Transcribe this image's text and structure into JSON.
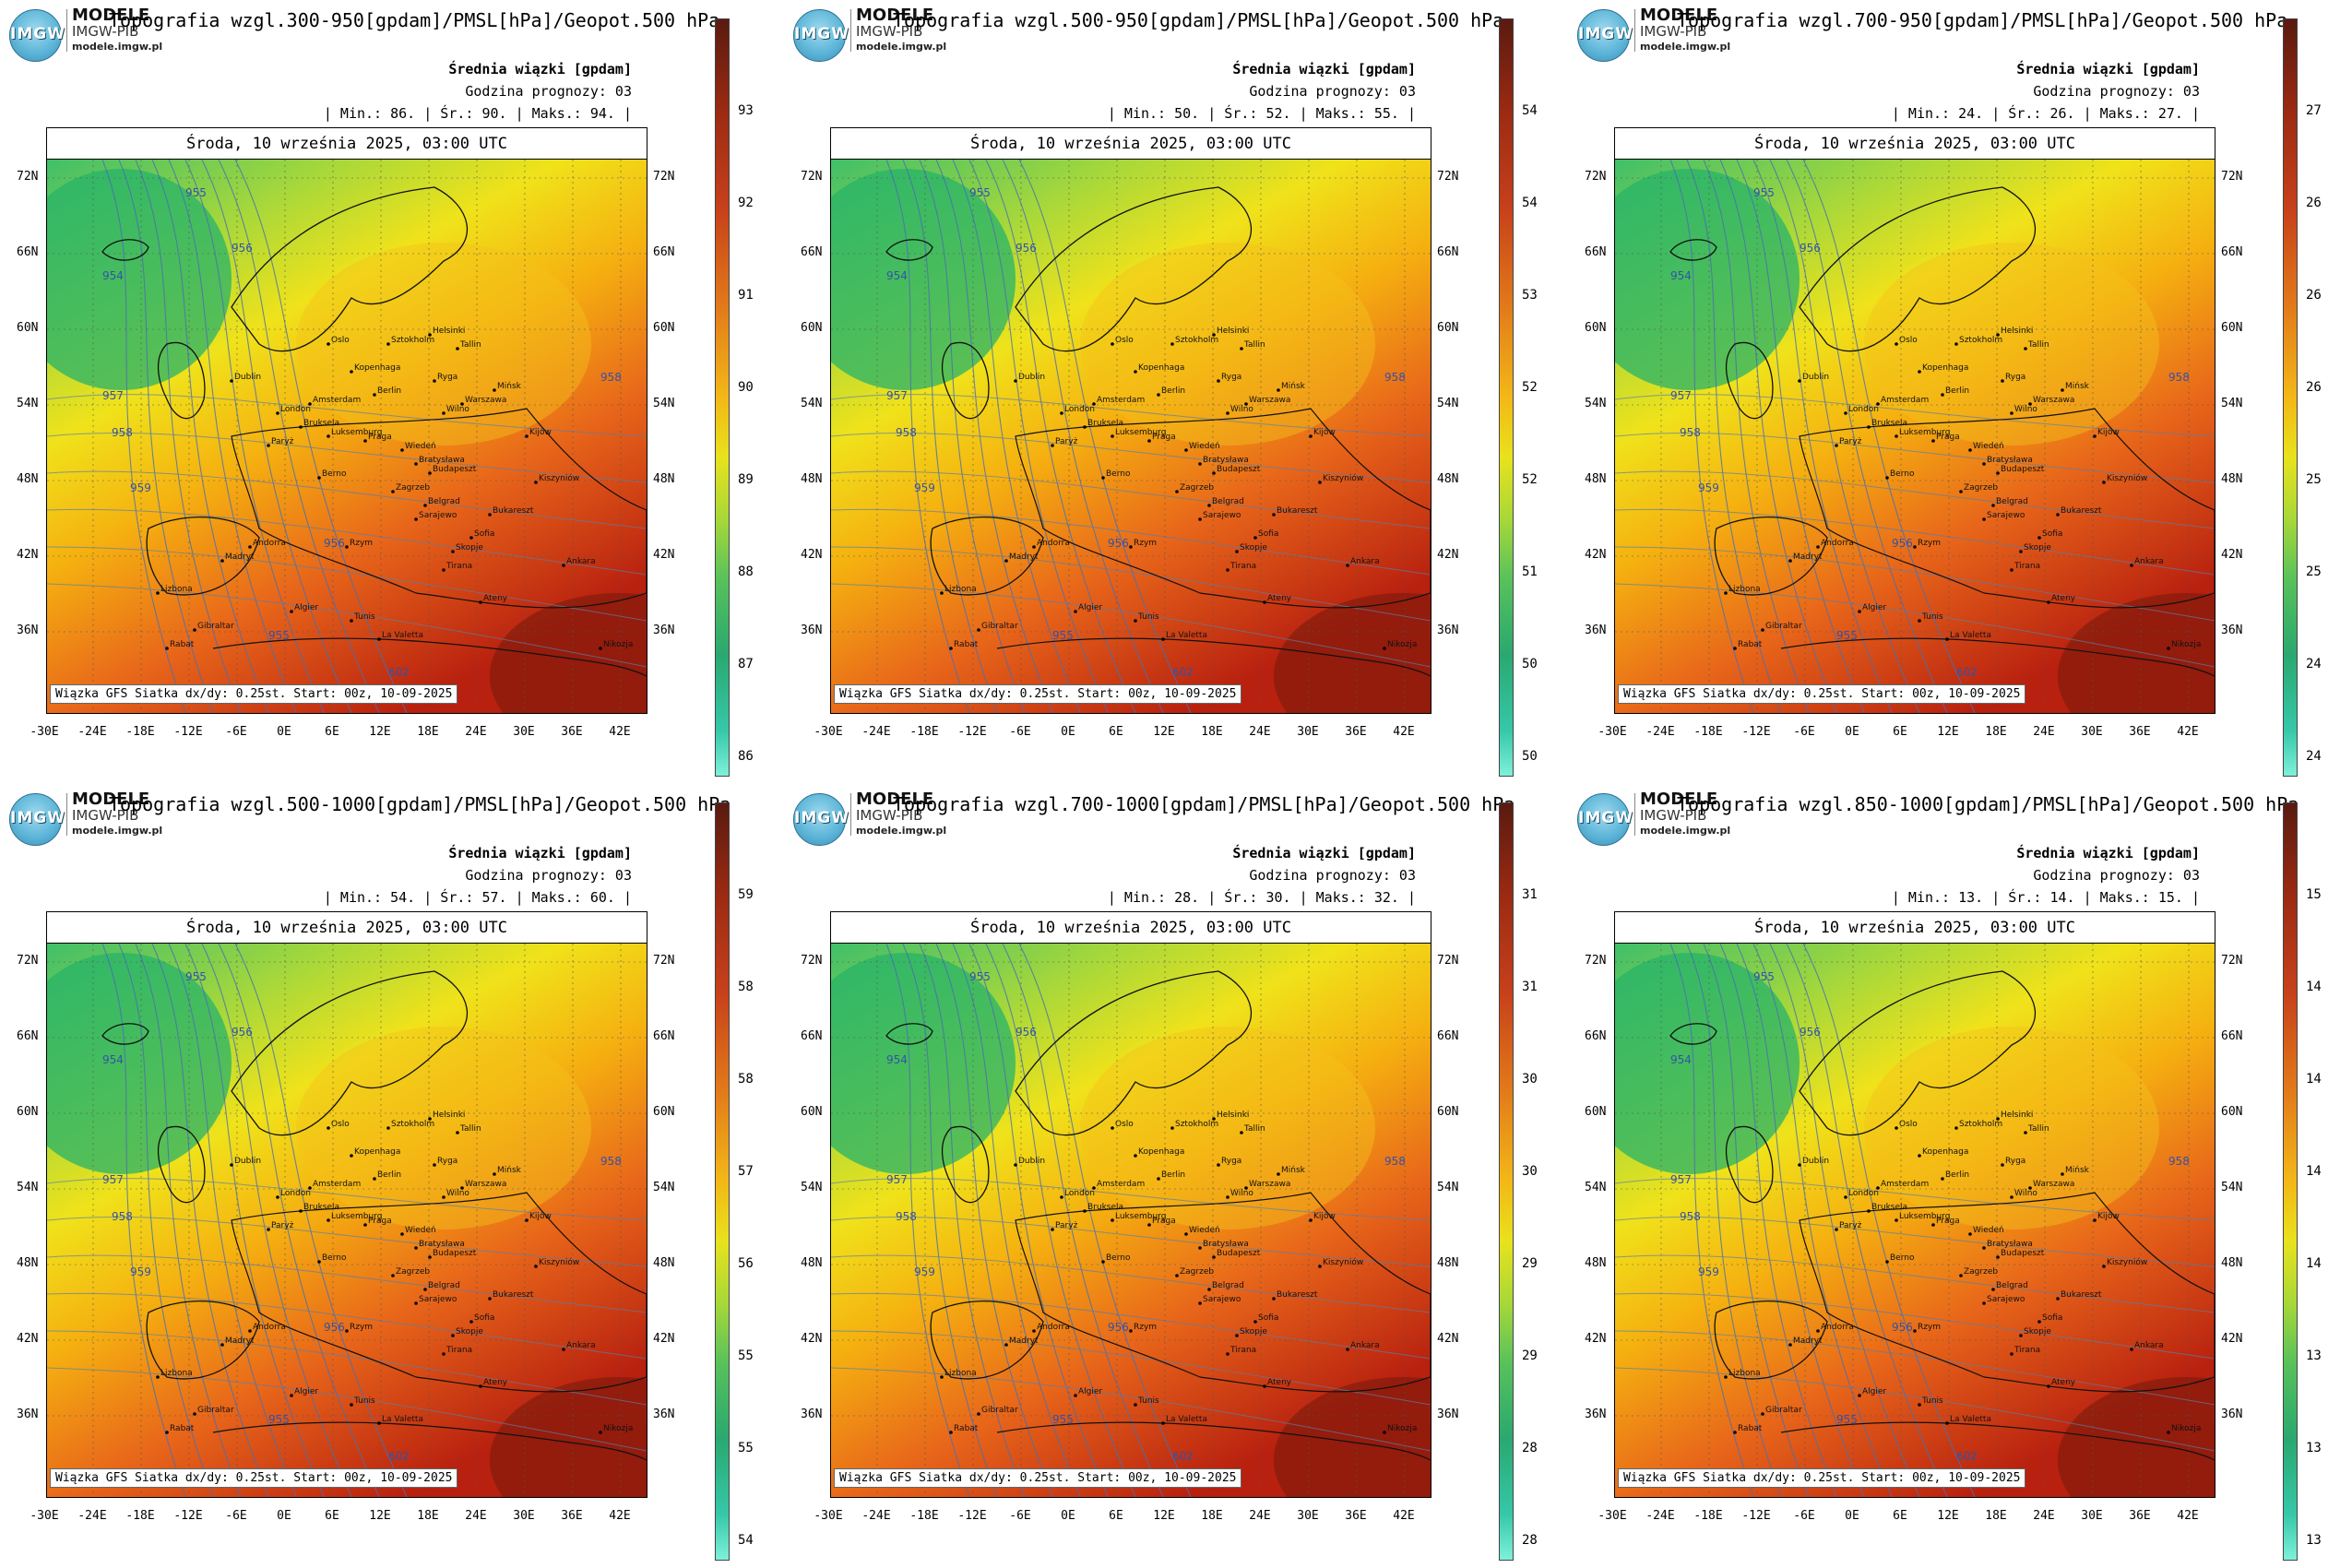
{
  "brand": {
    "name": "MODELE",
    "sub": "IMGW-PIB",
    "url": "modele.imgw.pl",
    "logo_text": "IMGW"
  },
  "common": {
    "mean_label": "Średnia wiązki [gpdam]",
    "hour_label": "Godzina prognozy: 03",
    "date_label": "Środa, 10 września 2025, 03:00 UTC",
    "footer": "Wiązka GFS Siatka dx/dy: 0.25st. Start: 00z, 10-09-2025",
    "lat_ticks": [
      "72N",
      "66N",
      "60N",
      "54N",
      "48N",
      "42N",
      "36N"
    ],
    "lon_ticks": [
      "-30E",
      "-24E",
      "-18E",
      "-12E",
      "-6E",
      "0E",
      "6E",
      "12E",
      "18E",
      "24E",
      "30E",
      "36E",
      "42E"
    ],
    "contour_labels": [
      "955",
      "954",
      "956",
      "957",
      "958",
      "959",
      "958",
      "602",
      "956",
      "955"
    ],
    "cities": [
      "Oslo",
      "Helsinki",
      "Sztokholm",
      "Tallin",
      "Ryga",
      "Kopenhaga",
      "Wilno",
      "Dublin",
      "Amsterdam",
      "Berlin",
      "Warszawa",
      "Mińsk",
      "London",
      "Bruksela",
      "Luksemburg",
      "Praga",
      "Kijów",
      "Paryż",
      "Wiedeń",
      "Bratysława",
      "Budapeszt",
      "Berno",
      "Kiszyniów",
      "Zagrzeb",
      "Belgrad",
      "Bukareszt",
      "Sarajewo",
      "Andorra",
      "Rzym",
      "Sofia",
      "Skopje",
      "Madryt",
      "Lizbona",
      "Tirana",
      "Ankara",
      "Ateny",
      "Algier",
      "Tunis",
      "La Valetta",
      "Gibraltar",
      "Rabat",
      "Nikozja"
    ]
  },
  "panels": [
    {
      "title": "Topografia wzgl.300-950[gpdam]/PMSL[hPa]/Geopot.500 hPa",
      "stats": "| Min.:   86. | Śr.:   90. | Maks.:   94. |",
      "colorbar_ticks": [
        "93",
        "92",
        "91",
        "90",
        "89",
        "88",
        "87",
        "86"
      ]
    },
    {
      "title": "Topografia wzgl.500-950[gpdam]/PMSL[hPa]/Geopot.500 hPa",
      "stats": "| Min.:   50. | Śr.:   52. | Maks.:   55. |",
      "colorbar_ticks": [
        "54",
        "54",
        "53",
        "52",
        "52",
        "51",
        "50",
        "50"
      ]
    },
    {
      "title": "Topografia wzgl.700-950[gpdam]/PMSL[hPa]/Geopot.500 hPa",
      "stats": "| Min.:   24. | Śr.:   26. | Maks.:   27. |",
      "colorbar_ticks": [
        "27",
        "26",
        "26",
        "26",
        "25",
        "25",
        "24",
        "24"
      ]
    },
    {
      "title": "Topografia wzgl.500-1000[gpdam]/PMSL[hPa]/Geopot.500 hPa",
      "stats": "| Min.:   54. | Śr.:   57. | Maks.:   60. |",
      "colorbar_ticks": [
        "59",
        "58",
        "58",
        "57",
        "56",
        "55",
        "55",
        "54"
      ]
    },
    {
      "title": "Topografia wzgl.700-1000[gpdam]/PMSL[hPa]/Geopot.500 hPa",
      "stats": "| Min.:   28. | Śr.:   30. | Maks.:   32. |",
      "colorbar_ticks": [
        "31",
        "31",
        "30",
        "30",
        "29",
        "29",
        "28",
        "28"
      ]
    },
    {
      "title": "Topografia wzgl.850-1000[gpdam]/PMSL[hPa]/Geopot.500 hPa",
      "stats": "| Min.:   13. | Śr.:   14. | Maks.:   15. |",
      "colorbar_ticks": [
        "15",
        "14",
        "14",
        "14",
        "14",
        "13",
        "13",
        "13"
      ]
    }
  ]
}
